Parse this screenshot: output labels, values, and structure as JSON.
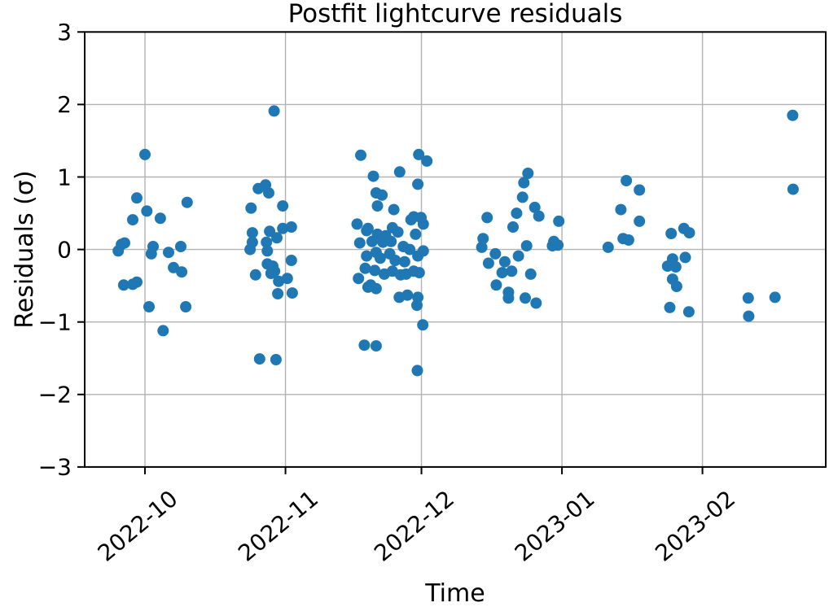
{
  "figure": {
    "background": "#ffffff"
  },
  "chart_data": {
    "type": "scatter",
    "title": "Postfit lightcurve residuals",
    "xlabel": "Time",
    "ylabel": "Residuals (σ)",
    "x_unit": "days since 2022-10-01",
    "xlim": [
      -13.3,
      150.2
    ],
    "ylim": [
      -3,
      3
    ],
    "grid": true,
    "legend": "none",
    "marker_color": "#1f77b4",
    "grid_color": "#b2b2b2",
    "spine_color": "#000000",
    "x_ticks": [
      {
        "day": 0,
        "label": "2022-10"
      },
      {
        "day": 31,
        "label": "2022-11"
      },
      {
        "day": 61,
        "label": "2022-12"
      },
      {
        "day": 92,
        "label": "2023-01"
      },
      {
        "day": 123,
        "label": "2023-02"
      }
    ],
    "y_ticks": [
      {
        "value": 3,
        "label": "3"
      },
      {
        "value": 2,
        "label": "2"
      },
      {
        "value": 1,
        "label": "1"
      },
      {
        "value": 0,
        "label": "0"
      },
      {
        "value": -1,
        "label": "−1"
      },
      {
        "value": -2,
        "label": "−2"
      },
      {
        "value": -3,
        "label": "−3"
      }
    ],
    "points": [
      [
        0.0,
        1.31
      ],
      [
        -1.8,
        0.71
      ],
      [
        0.4,
        0.53
      ],
      [
        -2.7,
        0.41
      ],
      [
        3.4,
        0.43
      ],
      [
        9.3,
        0.65
      ],
      [
        -5.2,
        0.07
      ],
      [
        -5.9,
        -0.02
      ],
      [
        -4.5,
        0.09
      ],
      [
        1.8,
        0.04
      ],
      [
        1.4,
        -0.06
      ],
      [
        5.2,
        -0.04
      ],
      [
        7.9,
        0.04
      ],
      [
        6.3,
        -0.25
      ],
      [
        8.1,
        -0.31
      ],
      [
        -4.7,
        -0.49
      ],
      [
        -2.7,
        -0.48
      ],
      [
        -1.8,
        -0.45
      ],
      [
        0.9,
        -0.79
      ],
      [
        9.0,
        -0.79
      ],
      [
        4.0,
        -1.12
      ],
      [
        28.5,
        1.91
      ],
      [
        26.6,
        0.89
      ],
      [
        25.0,
        0.84
      ],
      [
        27.3,
        0.78
      ],
      [
        30.4,
        0.6
      ],
      [
        23.4,
        0.57
      ],
      [
        23.7,
        0.23
      ],
      [
        27.5,
        0.25
      ],
      [
        30.4,
        0.29
      ],
      [
        32.3,
        0.31
      ],
      [
        29.1,
        0.16
      ],
      [
        23.7,
        0.1
      ],
      [
        26.8,
        0.1
      ],
      [
        23.2,
        0.0
      ],
      [
        27.0,
        -0.02
      ],
      [
        32.3,
        -0.15
      ],
      [
        27.0,
        -0.2
      ],
      [
        28.2,
        -0.23
      ],
      [
        28.6,
        -0.3
      ],
      [
        24.4,
        -0.35
      ],
      [
        27.8,
        -0.33
      ],
      [
        29.5,
        -0.44
      ],
      [
        31.4,
        -0.4
      ],
      [
        29.3,
        -0.61
      ],
      [
        32.5,
        -0.6
      ],
      [
        25.3,
        -1.51
      ],
      [
        28.9,
        -1.52
      ],
      [
        47.6,
        1.3
      ],
      [
        60.4,
        1.31
      ],
      [
        62.2,
        1.22
      ],
      [
        50.4,
        1.01
      ],
      [
        56.2,
        1.07
      ],
      [
        60.2,
        0.9
      ],
      [
        51.0,
        0.78
      ],
      [
        52.3,
        0.75
      ],
      [
        51.3,
        0.6
      ],
      [
        54.9,
        0.55
      ],
      [
        59.3,
        0.45
      ],
      [
        58.7,
        0.41
      ],
      [
        60.9,
        0.44
      ],
      [
        61.4,
        0.35
      ],
      [
        46.8,
        0.35
      ],
      [
        48.9,
        0.26
      ],
      [
        49.2,
        0.29
      ],
      [
        54.6,
        0.3
      ],
      [
        55.8,
        0.24
      ],
      [
        59.7,
        0.21
      ],
      [
        51.3,
        0.21
      ],
      [
        53.1,
        0.19
      ],
      [
        47.4,
        0.09
      ],
      [
        50.1,
        0.11
      ],
      [
        52.5,
        0.1
      ],
      [
        54.3,
        0.11
      ],
      [
        57.0,
        0.04
      ],
      [
        58.4,
        0.0
      ],
      [
        48.9,
        -0.09
      ],
      [
        51.0,
        -0.04
      ],
      [
        51.9,
        -0.12
      ],
      [
        54.0,
        -0.06
      ],
      [
        55.2,
        -0.15
      ],
      [
        57.3,
        -0.17
      ],
      [
        60.2,
        -0.09
      ],
      [
        61.4,
        -0.02
      ],
      [
        47.1,
        -0.4
      ],
      [
        48.6,
        -0.26
      ],
      [
        50.7,
        -0.29
      ],
      [
        52.8,
        -0.34
      ],
      [
        54.6,
        -0.3
      ],
      [
        56.4,
        -0.35
      ],
      [
        57.6,
        -0.34
      ],
      [
        59.3,
        -0.3
      ],
      [
        60.5,
        -0.32
      ],
      [
        49.2,
        -0.52
      ],
      [
        49.8,
        -0.49
      ],
      [
        51.0,
        -0.54
      ],
      [
        56.1,
        -0.66
      ],
      [
        57.9,
        -0.63
      ],
      [
        60.2,
        -0.66
      ],
      [
        60.0,
        -0.77
      ],
      [
        61.3,
        -1.04
      ],
      [
        48.4,
        -1.32
      ],
      [
        51.0,
        -1.33
      ],
      [
        60.1,
        -1.67
      ],
      [
        84.5,
        1.05
      ],
      [
        83.6,
        0.92
      ],
      [
        83.3,
        0.72
      ],
      [
        86.0,
        0.58
      ],
      [
        86.9,
        0.46
      ],
      [
        82.0,
        0.5
      ],
      [
        75.5,
        0.44
      ],
      [
        91.3,
        0.39
      ],
      [
        81.2,
        0.31
      ],
      [
        74.6,
        0.15
      ],
      [
        74.3,
        0.03
      ],
      [
        90.2,
        0.11
      ],
      [
        91.1,
        0.06
      ],
      [
        89.9,
        0.05
      ],
      [
        77.3,
        -0.06
      ],
      [
        82.4,
        -0.09
      ],
      [
        84.2,
        0.05
      ],
      [
        75.8,
        -0.19
      ],
      [
        79.4,
        -0.17
      ],
      [
        80.9,
        -0.3
      ],
      [
        78.8,
        -0.32
      ],
      [
        85.1,
        -0.34
      ],
      [
        77.5,
        -0.49
      ],
      [
        80.2,
        -0.59
      ],
      [
        80.2,
        -0.67
      ],
      [
        83.9,
        -0.67
      ],
      [
        86.3,
        -0.74
      ],
      [
        106.2,
        0.95
      ],
      [
        109.1,
        0.82
      ],
      [
        105.0,
        0.55
      ],
      [
        109.1,
        0.39
      ],
      [
        105.5,
        0.15
      ],
      [
        106.7,
        0.13
      ],
      [
        102.2,
        0.03
      ],
      [
        116.1,
        0.22
      ],
      [
        118.9,
        0.29
      ],
      [
        120.1,
        0.23
      ],
      [
        116.4,
        -0.13
      ],
      [
        115.3,
        -0.23
      ],
      [
        117.1,
        -0.24
      ],
      [
        119.2,
        -0.11
      ],
      [
        116.4,
        -0.41
      ],
      [
        117.3,
        -0.51
      ],
      [
        115.8,
        -0.8
      ],
      [
        120.0,
        -0.86
      ],
      [
        133.1,
        -0.67
      ],
      [
        139.0,
        -0.66
      ],
      [
        133.2,
        -0.92
      ],
      [
        142.9,
        1.85
      ],
      [
        143.0,
        0.83
      ]
    ]
  }
}
